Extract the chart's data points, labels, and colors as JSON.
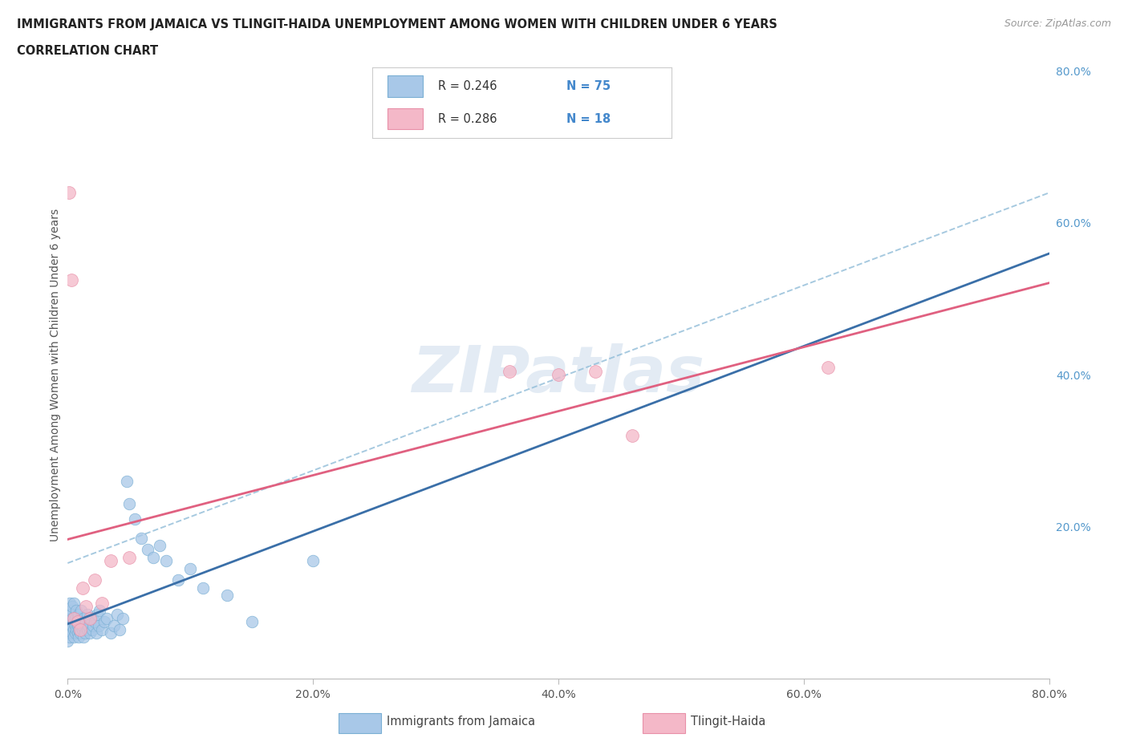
{
  "title_line1": "IMMIGRANTS FROM JAMAICA VS TLINGIT-HAIDA UNEMPLOYMENT AMONG WOMEN WITH CHILDREN UNDER 6 YEARS",
  "title_line2": "CORRELATION CHART",
  "source_text": "Source: ZipAtlas.com",
  "ylabel": "Unemployment Among Women with Children Under 6 years",
  "background_color": "#ffffff",
  "grid_color": "#d8d8d8",
  "watermark_text": "ZIPatlas",
  "blue_scatter_color": "#a8c8e8",
  "blue_scatter_edge": "#7aafd4",
  "pink_scatter_color": "#f4b8c8",
  "pink_scatter_edge": "#e890a8",
  "blue_line_color": "#3a6fa8",
  "pink_line_color": "#e06080",
  "blue_dash_color": "#90bcd8",
  "right_tick_color": "#5599cc",
  "legend_text_color": "#333333",
  "legend_n_color": "#4488cc",
  "jamaica_x": [
    0.0,
    0.001,
    0.001,
    0.002,
    0.002,
    0.002,
    0.003,
    0.003,
    0.003,
    0.003,
    0.004,
    0.004,
    0.004,
    0.004,
    0.005,
    0.005,
    0.005,
    0.005,
    0.006,
    0.006,
    0.006,
    0.007,
    0.007,
    0.007,
    0.008,
    0.008,
    0.008,
    0.009,
    0.009,
    0.009,
    0.01,
    0.01,
    0.01,
    0.011,
    0.011,
    0.012,
    0.012,
    0.013,
    0.013,
    0.014,
    0.015,
    0.016,
    0.016,
    0.017,
    0.018,
    0.019,
    0.02,
    0.021,
    0.022,
    0.023,
    0.024,
    0.025,
    0.026,
    0.028,
    0.03,
    0.032,
    0.035,
    0.038,
    0.04,
    0.042,
    0.045,
    0.048,
    0.05,
    0.055,
    0.06,
    0.065,
    0.07,
    0.075,
    0.08,
    0.09,
    0.1,
    0.11,
    0.13,
    0.15,
    0.2
  ],
  "jamaica_y": [
    0.05,
    0.08,
    0.06,
    0.1,
    0.07,
    0.055,
    0.09,
    0.065,
    0.075,
    0.085,
    0.06,
    0.07,
    0.08,
    0.095,
    0.065,
    0.075,
    0.055,
    0.1,
    0.07,
    0.08,
    0.06,
    0.065,
    0.09,
    0.075,
    0.06,
    0.08,
    0.07,
    0.055,
    0.085,
    0.065,
    0.07,
    0.06,
    0.08,
    0.075,
    0.09,
    0.065,
    0.07,
    0.055,
    0.08,
    0.06,
    0.075,
    0.065,
    0.085,
    0.07,
    0.06,
    0.08,
    0.065,
    0.07,
    0.075,
    0.06,
    0.085,
    0.07,
    0.09,
    0.065,
    0.075,
    0.08,
    0.06,
    0.07,
    0.085,
    0.065,
    0.08,
    0.26,
    0.23,
    0.21,
    0.185,
    0.17,
    0.16,
    0.175,
    0.155,
    0.13,
    0.145,
    0.12,
    0.11,
    0.075,
    0.155
  ],
  "tlingit_x": [
    0.001,
    0.003,
    0.005,
    0.008,
    0.01,
    0.012,
    0.015,
    0.018,
    0.022,
    0.028,
    0.035,
    0.05,
    0.36,
    0.4,
    0.43,
    0.46,
    0.62
  ],
  "tlingit_y": [
    0.64,
    0.525,
    0.08,
    0.075,
    0.065,
    0.12,
    0.095,
    0.08,
    0.13,
    0.1,
    0.155,
    0.16,
    0.405,
    0.4,
    0.405,
    0.32,
    0.41
  ],
  "xlim": [
    0.0,
    0.8
  ],
  "ylim": [
    0.0,
    0.8
  ],
  "xticks": [
    0.0,
    0.2,
    0.4,
    0.6,
    0.8
  ],
  "xticklabels": [
    "0.0%",
    "20.0%",
    "40.0%",
    "60.0%",
    "80.0%"
  ],
  "yticks_right": [
    0.2,
    0.4,
    0.6,
    0.8
  ],
  "yticklabels_right": [
    "20.0%",
    "40.0%",
    "60.0%",
    "80.0%"
  ]
}
